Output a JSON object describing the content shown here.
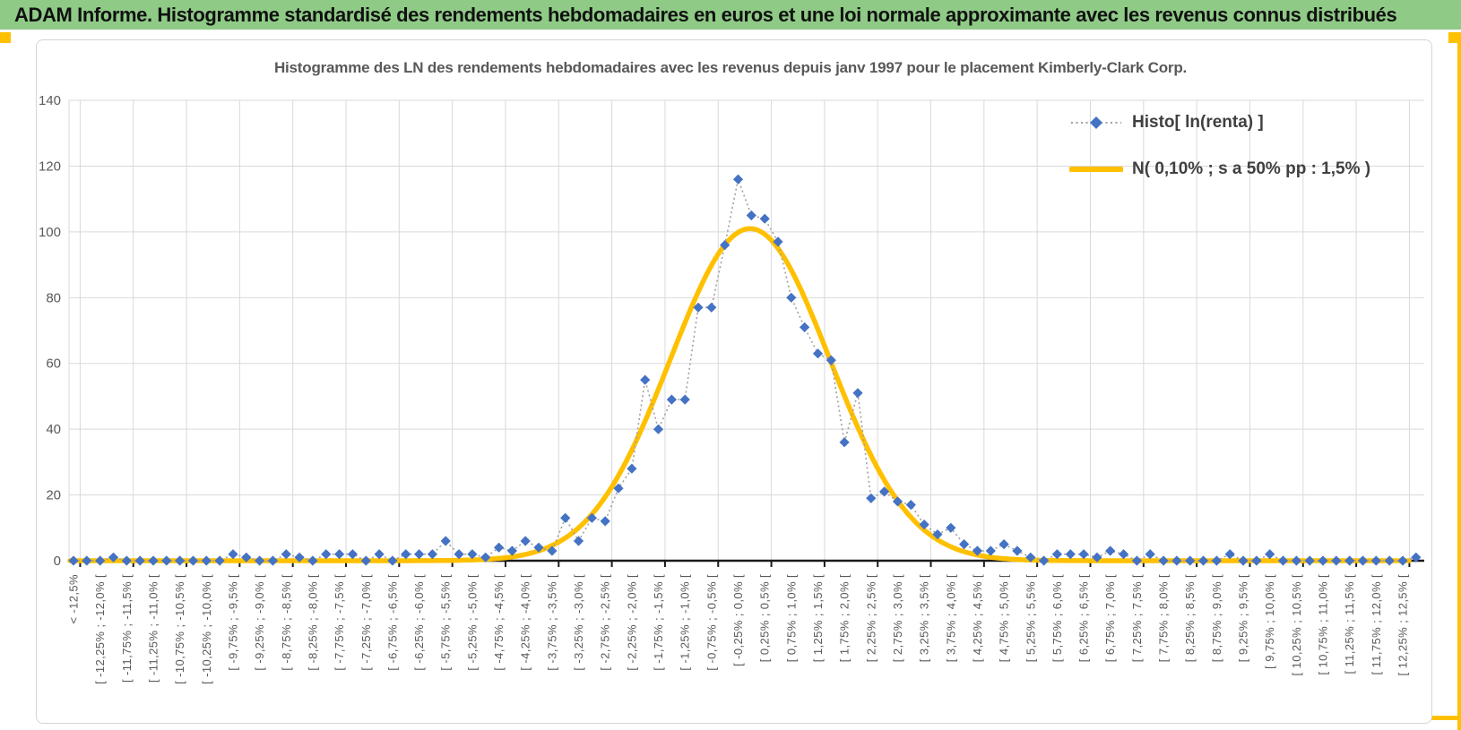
{
  "banner": {
    "title": "ADAM Informe. Histogramme standardisé des rendements hebdomadaires en euros et une loi normale approximante avec les revenus connus distribués"
  },
  "chart": {
    "title": "Histogramme des LN des rendements hebdomadaires avec les revenus depuis janv 1997 pour le placement Kimberly-Clark Corp.",
    "legend": [
      {
        "label": "Histo[ ln(renta) ]",
        "marker": "blue-diamond-dotted-line"
      },
      {
        "label": "N( 0,10% ; s a 50% pp : 1,5% )",
        "marker": "gold-solid-line"
      }
    ]
  },
  "chart_data": {
    "type": "scatter",
    "title": "Histogramme des LN des rendements hebdomadaires avec les revenus depuis janv 1997 pour le placement Kimberly-Clark Corp.",
    "ylim": [
      0,
      140
    ],
    "yticks": [
      0,
      20,
      40,
      60,
      80,
      100,
      120,
      140
    ],
    "bin_width_pct": 0.25,
    "first_bin_center_pct": -12.625,
    "bin_step_pct": 0.25,
    "labels_every": 2,
    "bin_labels": [
      "< -12,5%",
      "[ -12,25% ; -12,0% [",
      "[ -11,75% ; -11,5% [",
      "[ -11,25% ; -11,0% [",
      "[ -10,75% ; -10,5% [",
      "[ -10,25% ; -10,0% [",
      "[ -9,75% ; -9,5% [",
      "[ -9,25% ; -9,0% [",
      "[ -8,75% ; -8,5% [",
      "[ -8,25% ; -8,0% [",
      "[ -7,75% ; -7,5% [",
      "[ -7,25% ; -7,0% [",
      "[ -6,75% ; -6,5% [",
      "[ -6,25% ; -6,0% [",
      "[ -5,75% ; -5,5% [",
      "[ -5,25% ; -5,0% [",
      "[ -4,75% ; -4,5% [",
      "[ -4,25% ; -4,0% [",
      "[ -3,75% ; -3,5% [",
      "[ -3,25% ; -3,0% [",
      "[ -2,75% ; -2,5% [",
      "[ -2,25% ; -2,0% [",
      "[ -1,75% ; -1,5% [",
      "[ -1,25% ; -1,0% [",
      "[ -0,75% ; -0,5% [",
      "[ -0,25% ; 0,0% [",
      "[ 0,25% ; 0,5% [",
      "[ 0,75% ; 1,0% [",
      "[ 1,25% ; 1,5% [",
      "[ 1,75% ; 2,0% [",
      "[ 2,25% ; 2,5% [",
      "[ 2,75% ; 3,0% [",
      "[ 3,25% ; 3,5% [",
      "[ 3,75% ; 4,0% [",
      "[ 4,25% ; 4,5% [",
      "[ 4,75% ; 5,0% [",
      "[ 5,25% ; 5,5% [",
      "[ 5,75% ; 6,0% [",
      "[ 6,25% ; 6,5% [",
      "[ 6,75% ; 7,0% [",
      "[ 7,25% ; 7,5% [",
      "[ 7,75% ; 8,0% [",
      "[ 8,25% ; 8,5% [",
      "[ 8,75% ; 9,0% [",
      "[ 9,25% ; 9,5% [",
      "[ 9,75% ; 10,0% [",
      "[ 10,25% ; 10,5% [",
      "[ 10,75% ; 11,0% [",
      "[ 11,25% ; 11,5% [",
      "[ 11,75% ; 12,0% [",
      "[ 12,25% ; 12,5% ["
    ],
    "series": [
      {
        "name": "Histo[ ln(renta) ]",
        "style": "blue-diamond-markers-dotted-connector",
        "values": [
          0,
          0,
          0,
          1,
          0,
          0,
          0,
          0,
          0,
          0,
          0,
          0,
          2,
          1,
          0,
          0,
          2,
          1,
          0,
          2,
          2,
          2,
          0,
          2,
          0,
          2,
          2,
          2,
          6,
          2,
          2,
          1,
          4,
          3,
          6,
          4,
          3,
          13,
          6,
          13,
          12,
          22,
          28,
          55,
          40,
          49,
          49,
          77,
          77,
          96,
          116,
          105,
          104,
          97,
          80,
          71,
          63,
          61,
          36,
          51,
          19,
          21,
          18,
          17,
          11,
          8,
          10,
          5,
          3,
          3,
          5,
          3,
          1,
          0,
          2,
          2,
          2,
          1,
          3,
          2,
          0,
          2,
          0,
          0,
          0,
          0,
          0,
          2,
          0,
          0,
          2,
          0,
          0,
          0,
          0,
          0,
          0,
          0,
          0,
          0,
          0,
          1
        ]
      },
      {
        "name": "N( 0,10% ; s a 50% pp : 1,5% )",
        "style": "gold-smooth-curve",
        "mean_pct": 0.1,
        "sd_pct": 1.5,
        "peak": 101
      }
    ]
  },
  "colors": {
    "banner_green": "#8FCB86",
    "series_blue": "#4472C4",
    "curve_gold": "#FFC000",
    "dotted_connector": "#A0A0A0",
    "gridline": "#D9D9D9",
    "axis": "#1a1a1a",
    "label_gray": "#595959"
  }
}
